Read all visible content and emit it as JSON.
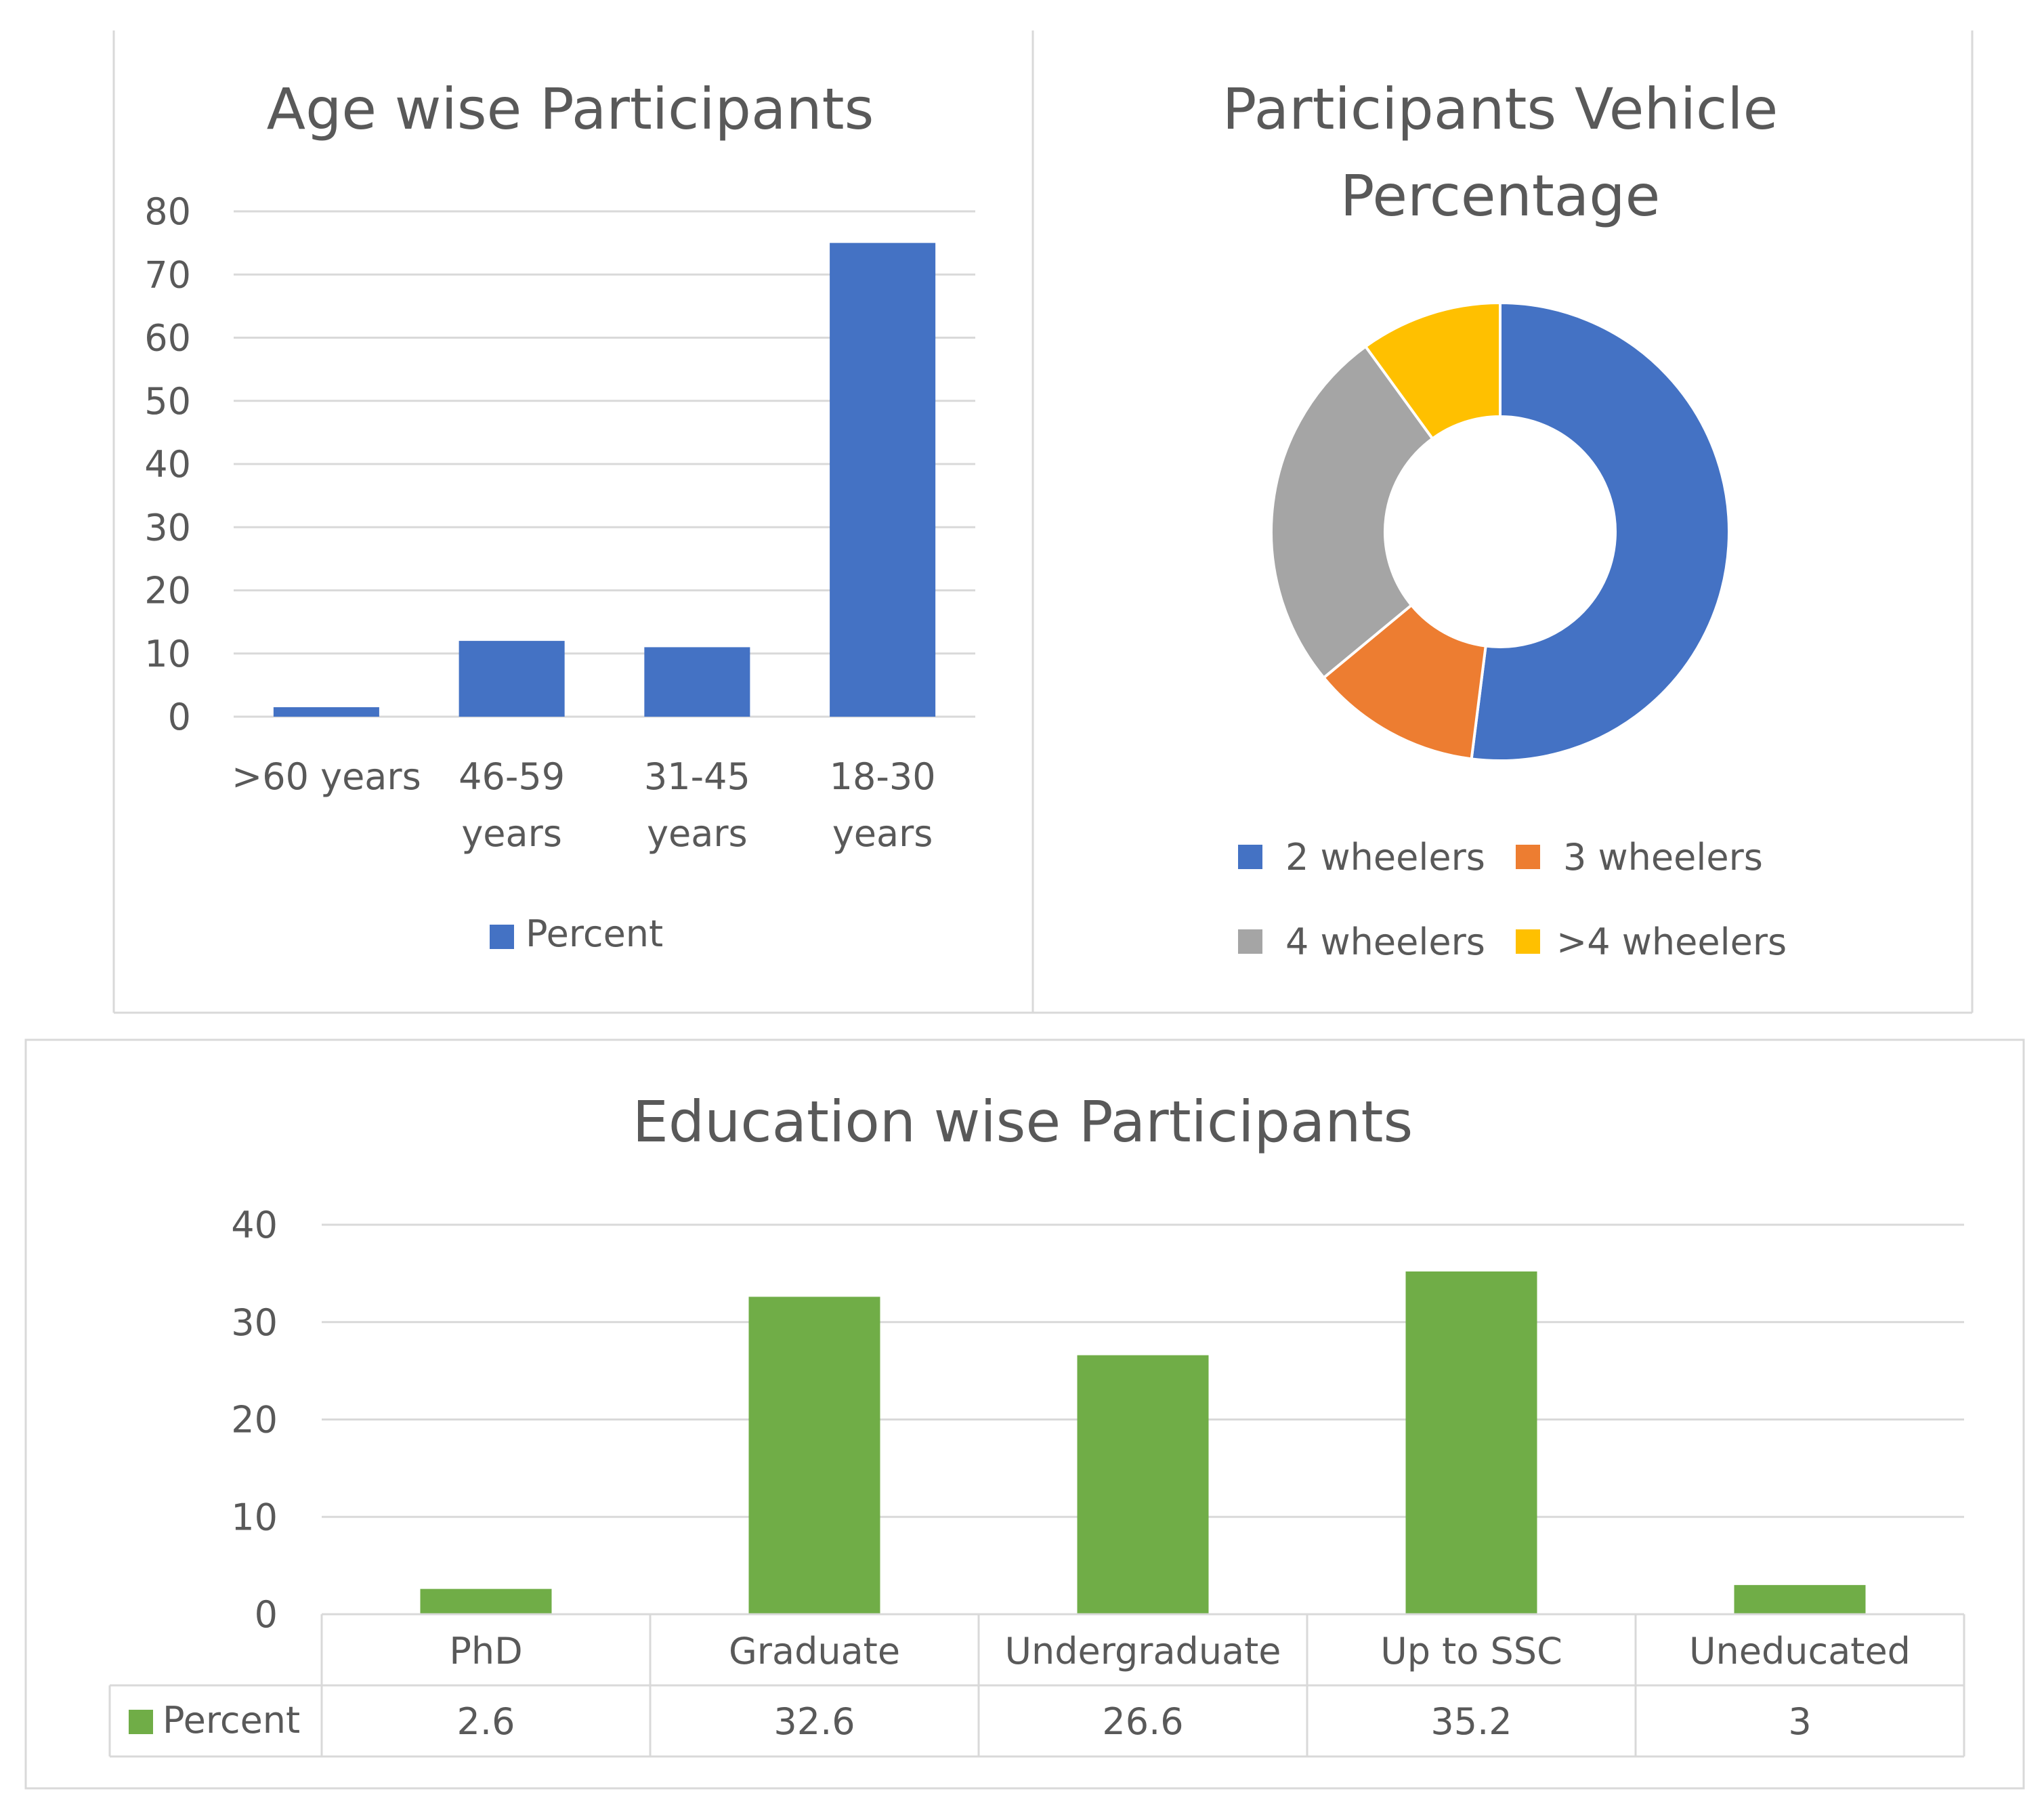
{
  "chart_data": [
    {
      "type": "bar",
      "title": "Age wise Participants",
      "categories": [
        ">60 years",
        "46-59 years",
        "31-45 years",
        "18-30 years"
      ],
      "category_lines": [
        [
          ">60 years"
        ],
        [
          "46-59",
          "years"
        ],
        [
          "31-45",
          "years"
        ],
        [
          "18-30",
          "years"
        ]
      ],
      "series": [
        {
          "name": "Percent",
          "values": [
            1.5,
            12,
            11,
            75
          ]
        }
      ],
      "ylim": [
        0,
        80
      ],
      "yticks": [
        0,
        10,
        20,
        30,
        40,
        50,
        60,
        70,
        80
      ],
      "grid": true,
      "legend": "bottom",
      "color": "#4472C4"
    },
    {
      "type": "pie",
      "donut": true,
      "title": "Participants Vehicle Percentage",
      "title_lines": [
        "Participants Vehicle",
        "Percentage"
      ],
      "labels": [
        "2 wheelers",
        "3 wheelers",
        "4 wheelers",
        ">4 wheelers"
      ],
      "values": [
        52,
        12,
        26,
        10
      ],
      "colors": [
        "#4472C4",
        "#ED7D31",
        "#A5A5A5",
        "#FFC000"
      ],
      "legend": "bottom"
    },
    {
      "type": "bar",
      "title": "Education wise Participants",
      "categories": [
        "PhD",
        "Graduate",
        "Undergraduate",
        "Up to SSC",
        "Uneducated"
      ],
      "series": [
        {
          "name": "Percent",
          "values": [
            2.6,
            32.6,
            26.6,
            35.2,
            3
          ]
        }
      ],
      "table_values": [
        "2.6",
        "32.6",
        "26.6",
        "35.2",
        "3"
      ],
      "ylim": [
        0,
        40
      ],
      "yticks": [
        0,
        10,
        20,
        30,
        40
      ],
      "grid": true,
      "legend": "data-table",
      "color": "#70AD47"
    }
  ]
}
